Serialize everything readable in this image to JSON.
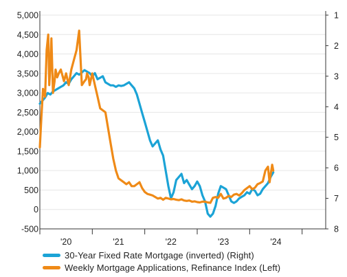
{
  "chart_data": {
    "type": "line",
    "title": "",
    "left_axis": {
      "ylim": [
        -500,
        5000
      ],
      "ticks": [
        -500,
        0,
        500,
        1000,
        1500,
        2000,
        2500,
        3000,
        3500,
        4000,
        4500,
        5000
      ],
      "tick_labels": [
        "-500",
        "0",
        "500",
        "1,000",
        "1,500",
        "2,000",
        "2,500",
        "3,000",
        "3,500",
        "4,000",
        "4,500",
        "5,000"
      ]
    },
    "right_axis": {
      "inverted": true,
      "ylim": [
        1,
        8
      ],
      "ticks": [
        1,
        2,
        3,
        4,
        5,
        6,
        7,
        8
      ],
      "tick_labels": [
        "1",
        "2",
        "3",
        "4",
        "5",
        "6",
        "7",
        "8"
      ]
    },
    "x_axis": {
      "xlim": [
        2019.0,
        2024.45
      ],
      "year_boundaries": [
        2019.0,
        2020.0,
        2021.0,
        2022.0,
        2023.0,
        2024.0
      ],
      "labels": [
        "'20",
        "'21",
        "'22",
        "'23",
        "'24"
      ],
      "label_positions": [
        2019.5,
        2020.5,
        2021.5,
        2022.5,
        2023.5
      ]
    },
    "grid": true,
    "legend_position": "bottom",
    "series": [
      {
        "name": "30-Year Fixed Rate Mortgage (inverted) (Right)",
        "axis": "right",
        "color": "#1ba3d6",
        "x": [
          2019.0,
          2019.05,
          2019.1,
          2019.15,
          2019.2,
          2019.25,
          2019.3,
          2019.35,
          2019.4,
          2019.45,
          2019.5,
          2019.55,
          2019.6,
          2019.65,
          2019.7,
          2019.75,
          2019.8,
          2019.85,
          2019.9,
          2019.95,
          2020.0,
          2020.05,
          2020.1,
          2020.15,
          2020.2,
          2020.25,
          2020.3,
          2020.35,
          2020.4,
          2020.45,
          2020.5,
          2020.55,
          2020.6,
          2020.65,
          2020.7,
          2020.75,
          2020.8,
          2020.85,
          2020.9,
          2020.95,
          2021.0,
          2021.05,
          2021.1,
          2021.15,
          2021.2,
          2021.25,
          2021.3,
          2021.35,
          2021.4,
          2021.45,
          2021.5,
          2021.55,
          2021.6,
          2021.65,
          2021.7,
          2021.75,
          2021.8,
          2021.85,
          2021.9,
          2021.95,
          2022.0,
          2022.05,
          2022.1,
          2022.15,
          2022.2,
          2022.25,
          2022.3,
          2022.35,
          2022.4,
          2022.45,
          2022.5,
          2022.55,
          2022.6,
          2022.65,
          2022.7,
          2022.75,
          2022.8,
          2022.85,
          2022.9,
          2022.95,
          2023.0,
          2023.05,
          2023.1,
          2023.15,
          2023.2,
          2023.25,
          2023.3,
          2023.35,
          2023.4,
          2023.45
        ],
        "values": [
          3.9,
          3.8,
          3.7,
          3.55,
          3.6,
          3.5,
          3.45,
          3.4,
          3.35,
          3.3,
          3.2,
          3.25,
          3.1,
          3.0,
          2.9,
          2.95,
          2.88,
          2.8,
          2.85,
          2.9,
          3.0,
          2.9,
          3.1,
          3.05,
          3.0,
          3.2,
          3.25,
          3.3,
          3.3,
          3.35,
          3.3,
          3.32,
          3.3,
          3.25,
          3.2,
          3.3,
          3.4,
          3.6,
          3.9,
          4.2,
          4.5,
          4.8,
          5.1,
          5.3,
          5.2,
          5.1,
          5.4,
          5.6,
          6.1,
          6.6,
          7.0,
          6.8,
          6.4,
          6.3,
          6.2,
          6.5,
          6.4,
          6.55,
          6.7,
          6.6,
          6.45,
          6.6,
          6.9,
          7.1,
          7.5,
          7.6,
          7.5,
          7.25,
          6.85,
          6.6,
          6.65,
          6.7,
          6.9,
          7.1,
          7.15,
          7.1,
          7.0,
          6.95,
          6.9,
          6.8,
          6.85,
          6.7,
          6.75,
          6.9,
          6.85,
          6.7,
          6.6,
          6.5,
          6.3,
          6.15
        ],
        "x_note": ""
      },
      {
        "name": "Weekly Mortgage Applications, Refinance Index (Left)",
        "axis": "left",
        "color": "#ef8a17",
        "x": [
          2019.0,
          2019.03,
          2019.06,
          2019.1,
          2019.13,
          2019.16,
          2019.18,
          2019.2,
          2019.22,
          2019.25,
          2019.28,
          2019.3,
          2019.33,
          2019.36,
          2019.4,
          2019.43,
          2019.46,
          2019.5,
          2019.55,
          2019.6,
          2019.65,
          2019.7,
          2019.75,
          2019.8,
          2019.85,
          2019.88,
          2019.9,
          2019.93,
          2019.95,
          2020.0,
          2020.05,
          2020.1,
          2020.15,
          2020.2,
          2020.25,
          2020.3,
          2020.35,
          2020.4,
          2020.45,
          2020.5,
          2020.55,
          2020.6,
          2020.65,
          2020.7,
          2020.75,
          2020.8,
          2020.85,
          2020.9,
          2020.95,
          2021.0,
          2021.05,
          2021.1,
          2021.15,
          2021.2,
          2021.25,
          2021.3,
          2021.35,
          2021.4,
          2021.45,
          2021.5,
          2021.55,
          2021.6,
          2021.65,
          2021.7,
          2021.75,
          2021.8,
          2021.85,
          2021.9,
          2021.95,
          2022.0,
          2022.05,
          2022.1,
          2022.15,
          2022.2,
          2022.25,
          2022.3,
          2022.35,
          2022.4,
          2022.45,
          2022.5,
          2022.55,
          2022.6,
          2022.65,
          2022.7,
          2022.75,
          2022.8,
          2022.85,
          2022.9,
          2022.95,
          2023.0,
          2023.05,
          2023.1,
          2023.15,
          2023.2,
          2023.25,
          2023.3,
          2023.35,
          2023.38,
          2023.4,
          2023.43,
          2023.45
        ],
        "values": [
          1600,
          2400,
          3100,
          2900,
          4100,
          4500,
          3200,
          3700,
          4400,
          3000,
          3300,
          3600,
          3400,
          3500,
          3600,
          3450,
          3300,
          3500,
          3200,
          3600,
          3850,
          4100,
          4600,
          3200,
          3300,
          3350,
          3500,
          3400,
          3200,
          3500,
          3200,
          2900,
          2600,
          2550,
          2500,
          2100,
          1700,
          1300,
          1000,
          800,
          750,
          700,
          650,
          700,
          600,
          600,
          650,
          700,
          550,
          450,
          400,
          380,
          360,
          320,
          280,
          300,
          250,
          300,
          280,
          260,
          270,
          250,
          240,
          260,
          230,
          220,
          230,
          200,
          210,
          190,
          180,
          200,
          200,
          180,
          170,
          300,
          320,
          300,
          400,
          280,
          300,
          350,
          320,
          380,
          400,
          360,
          420,
          500,
          550,
          600,
          520,
          560,
          650,
          680,
          720,
          1000,
          1100,
          700,
          900,
          1150,
          1000
        ]
      }
    ]
  }
}
